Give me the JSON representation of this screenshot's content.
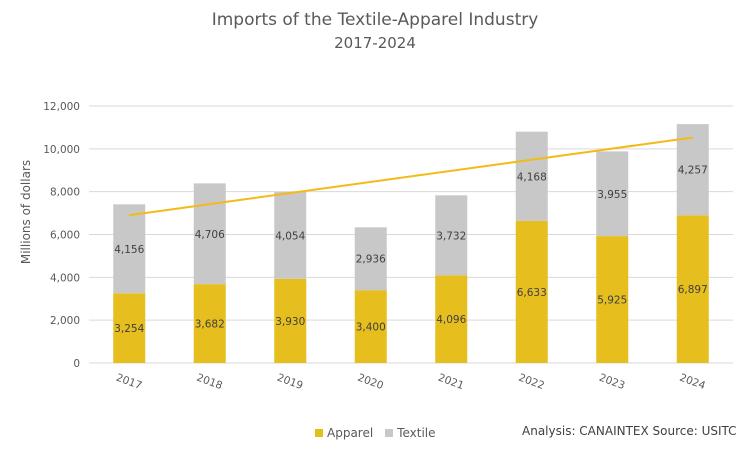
{
  "colors": {
    "apparel": "#E6BE1E",
    "textile": "#C8C8C8",
    "trend": "#F2BB18",
    "grid": "#D9D9D9",
    "text": "#595959"
  },
  "footer": {
    "source": "Analysis: CANAINTEX  Source: USITC"
  },
  "chart_data": {
    "type": "bar",
    "stacked": true,
    "title": "Imports of the Textile-Apparel Industry",
    "subtitle": "2017-2024",
    "ylabel": "Millions of dollars",
    "xlabel": "",
    "ylim": [
      0,
      12000
    ],
    "yticks": [
      "0",
      "2,000",
      "4,000",
      "6,000",
      "8,000",
      "10,000",
      "12,000"
    ],
    "grid": true,
    "legend_position": "bottom",
    "categories": [
      "2017",
      "2018",
      "2019",
      "2020",
      "2021",
      "2022",
      "2023",
      "2024"
    ],
    "series": [
      {
        "name": "Apparel",
        "values": [
          3254,
          3682,
          3930,
          3400,
          4096,
          6633,
          5925,
          6897
        ],
        "labels": [
          "3,254",
          "3,682",
          "3,930",
          "3,400",
          "4,096",
          "6,633",
          "5,925",
          "6,897"
        ]
      },
      {
        "name": "Textile",
        "values": [
          4156,
          4706,
          4054,
          2936,
          3732,
          4168,
          3955,
          4257
        ],
        "labels": [
          "4,156",
          "4,706",
          "4,054",
          "2,936",
          "3,732",
          "4,168",
          "3,955",
          "4,257"
        ]
      }
    ],
    "trendline": {
      "type": "linear",
      "start": 6900,
      "end": 10530
    }
  }
}
